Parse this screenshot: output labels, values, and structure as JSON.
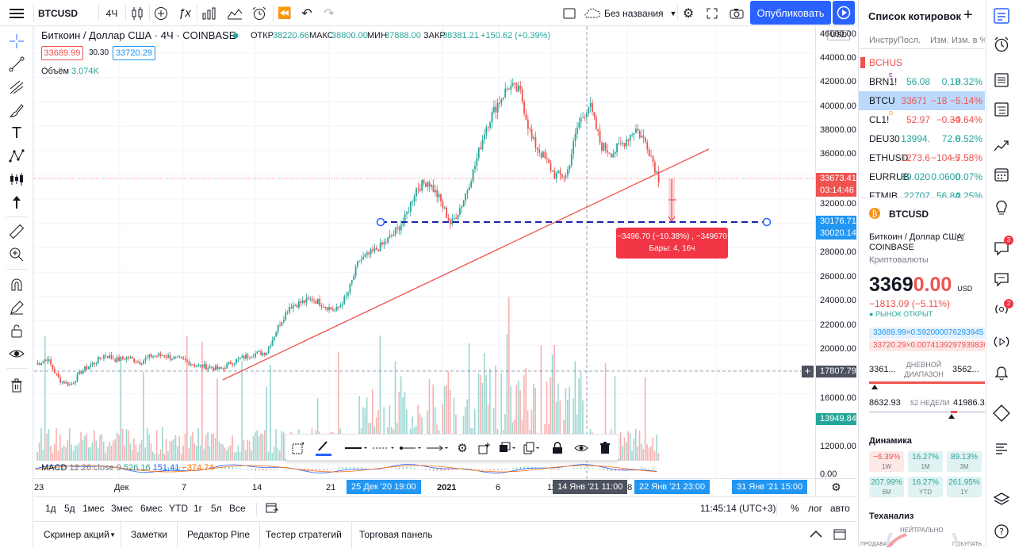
{
  "topbar": {
    "symbol": "BTCUSD",
    "interval": "4Ч",
    "layout_name": "Без названия",
    "publish": "Опубликовать"
  },
  "legend": {
    "title": "Биткоин / Доллар США · 4Ч · COINBASE",
    "o_lbl": "ОТКР",
    "o": "38220.66",
    "h_lbl": "МАКС",
    "h": "38800.00",
    "l_lbl": "МИН",
    "l": "37888.00",
    "c_lbl": "ЗАКР",
    "c": "38381.21",
    "chg": "+150.62 (+0.39%)",
    "bid": "33689.99",
    "spread": "30.30",
    "ask": "33720.29",
    "vol_lbl": "Объём",
    "vol": "3.074K",
    "macd_lbl": "MACD",
    "macd_params": "12 26 close 9",
    "macd_v1": "526.16",
    "macd_v2": "151.41",
    "macd_v3": "−374.74"
  },
  "yaxis": {
    "currency": "USD",
    "labels": [
      "46000.00",
      "44000.00",
      "42000.00",
      "40000.00",
      "38000.00",
      "36000.00",
      "32000.00",
      "28000.00",
      "26000.00",
      "24000.00",
      "22000.00",
      "20000.00",
      "16000.00",
      "12000.00",
      "0.00"
    ],
    "price_tag": "33673.41",
    "countdown": "03:14:46",
    "tag1": "30176.71",
    "tag2": "30020.14",
    "cross_price": "17807.79",
    "vol_tag": "13949.84"
  },
  "xaxis": {
    "labels": [
      "23",
      "Дек",
      "7",
      "14",
      "21",
      "2021",
      "6",
      "11",
      "18"
    ],
    "tag_left": "25 Дек '20   19:00",
    "tag_center": "14 Янв '21   11:00",
    "tag_right": "22 Янв '21   23:00",
    "tag_far": "31 Янв '21   15:00",
    "tag_right_prefix": "2"
  },
  "measure": {
    "line1": "−3496.70 (−10.38%) , −349670",
    "line2": "Бары: 4, 16ч"
  },
  "ranges": [
    "1д",
    "5д",
    "1мес",
    "3мес",
    "6мес",
    "YTD",
    "1г",
    "5л",
    "Все"
  ],
  "rangebar": {
    "time": "11:45:14 (UTC+3)",
    "pct": "%",
    "log": "лог",
    "auto": "авто"
  },
  "bottom_tabs": [
    "Скринер акций",
    "Заметки",
    "Редактор Pine",
    "Тестер стратегий",
    "Торговая панель"
  ],
  "watchlist": {
    "title": "Список котировок",
    "cols": [
      "Инстру",
      "Посл.",
      "Изм.",
      "Изм. в %"
    ],
    "partial": "BCHUS",
    "rows": [
      {
        "sym": "BRN1!",
        "mark": "E",
        "last": "56.08",
        "chg": "0.18",
        "pct": "0.32%",
        "dir": "up"
      },
      {
        "sym": "BTCUSD",
        "last": "33671.",
        "chg": "−1825.",
        "pct": "−5.14%",
        "dir": "down",
        "selected": true
      },
      {
        "sym": "CL1!",
        "mark": "D",
        "last": "52.97",
        "chg": "−0.34",
        "pct": "−0.64%",
        "dir": "down"
      },
      {
        "sym": "DEU30",
        "last": "13994.",
        "chg": "72.6",
        "pct": "0.52%",
        "dir": "up"
      },
      {
        "sym": "ETHUSD",
        "last": "1273.6",
        "chg": "−104.5",
        "pct": "−7.58%",
        "dir": "down"
      },
      {
        "sym": "EURRUB",
        "last": "89.020",
        "chg": "0.0600",
        "pct": "0.07%",
        "dir": "up"
      },
      {
        "sym": "FTMIB",
        "last": "22707",
        "chg": "56.84",
        "pct": "0.25%",
        "dir": "up"
      }
    ]
  },
  "details": {
    "symbol": "BTCUSD",
    "name": "Биткоин / Доллар США",
    "exchange": "COINBASE",
    "type": "Криптовалюты",
    "price_big": "33690.00",
    "price_main": "3369",
    "price_tail": "0.00",
    "currency": "USD",
    "change": "−1813.09 (−5.11%)",
    "market": "РЫНОК ОТКРЫТ",
    "bid_line": "33689.99×0.592000076293945",
    "ask_line": "33720.29×0.00741392979398369",
    "day_low": "3361...",
    "day_lbl1": "ДНЕВНОЙ",
    "day_lbl2": "ДИАПАЗОН",
    "day_high": "3562...",
    "w_low": "8632.93",
    "w_lbl": "52 НЕДЕЛИ",
    "w_high": "41986.37",
    "dyn_title": "Динамика",
    "perf": [
      {
        "v": "−6.39%",
        "p": "1W",
        "d": "down"
      },
      {
        "v": "16.27%",
        "p": "1M",
        "d": "up"
      },
      {
        "v": "89.13%",
        "p": "3M",
        "d": "up"
      },
      {
        "v": "207.99%",
        "p": "6M",
        "d": "up"
      },
      {
        "v": "16.27%",
        "p": "YTD",
        "d": "up"
      },
      {
        "v": "261.95%",
        "p": "1Y",
        "d": "up"
      }
    ],
    "tech_title": "Теханализ",
    "tech_neutral": "НЕЙТРАЛЬНО",
    "tech_sell": "ПРОДАВАТЬ",
    "tech_buy": "ПОКУПАТЬ"
  },
  "badges": [
    "3",
    "2"
  ],
  "colors": {
    "up": "#26a69a",
    "down": "#ef5350",
    "accent": "#2962ff",
    "blue": "#2196f3"
  },
  "chart_data": {
    "type": "candlestick",
    "x_range": [
      "2020-11-23",
      "2021-01-26"
    ],
    "y_range": [
      15000,
      46000
    ],
    "candle_closes": [
      18400,
      18900,
      17200,
      16700,
      17900,
      18500,
      19200,
      18800,
      19000,
      18600,
      19100,
      19200,
      18900,
      18700,
      18300,
      18200,
      18000,
      18600,
      19000,
      19300,
      19400,
      21500,
      23200,
      23500,
      23800,
      23300,
      22800,
      24100,
      26900,
      27500,
      28200,
      29100,
      30400,
      32900,
      33500,
      32000,
      29900,
      31700,
      34500,
      37900,
      39800,
      41300,
      40800,
      36900,
      35500,
      34000,
      33900,
      38100,
      39800,
      36400,
      35800,
      36700,
      37800,
      36500,
      33700
    ],
    "horizontal_line": 30250,
    "price": 33673.41
  }
}
